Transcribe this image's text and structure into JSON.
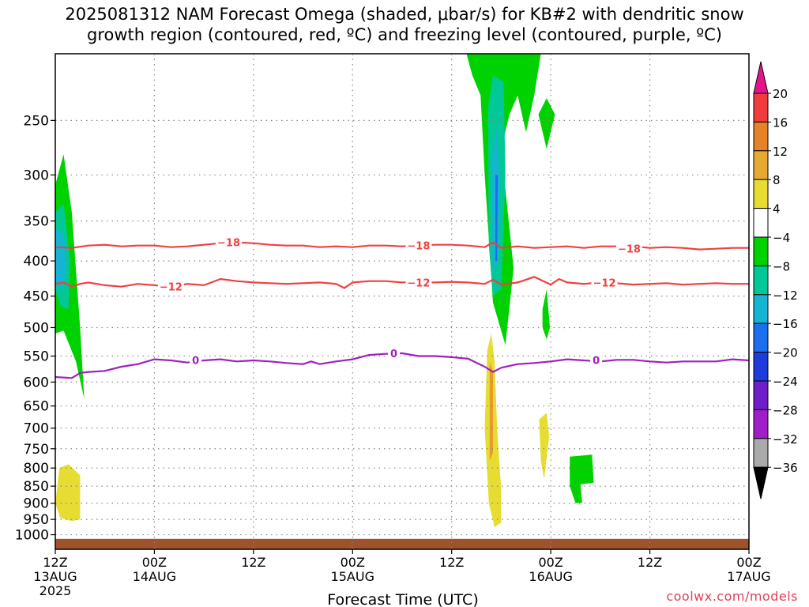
{
  "title_line1": "2025081312 NAM Forecast Omega (shaded, μbar/s) for KB#2 with dendritic snow",
  "title_line2": "growth region (contoured, red, ºC) and freezing level (contoured, purple, ºC)",
  "credit": "coolwx.com/models",
  "colors": {
    "red_contour": "#f04040",
    "purple_contour": "#a020c0",
    "ground": "#a0522d",
    "yellow": "#e6dc32",
    "orange": "#e69b2a",
    "green": "#00d200",
    "teal": "#00c896",
    "cyan": "#14b4d2",
    "blue": "#1e6ef0"
  },
  "chart_data": {
    "type": "heatmap",
    "xlabel": "Forecast Time (UTC)",
    "ylabel": "",
    "x_unit": "hours from 2025-08-13 12Z",
    "xlim": [
      0,
      84
    ],
    "ylim": [
      1050,
      200
    ],
    "y_scale": "log",
    "x_ticks": [
      {
        "value": 0,
        "label": "12Z",
        "sub": "13AUG",
        "sub2": "2025"
      },
      {
        "value": 12,
        "label": "00Z",
        "sub": "14AUG",
        "sub2": ""
      },
      {
        "value": 24,
        "label": "12Z",
        "sub": "",
        "sub2": ""
      },
      {
        "value": 36,
        "label": "00Z",
        "sub": "15AUG",
        "sub2": ""
      },
      {
        "value": 48,
        "label": "12Z",
        "sub": "",
        "sub2": ""
      },
      {
        "value": 60,
        "label": "00Z",
        "sub": "16AUG",
        "sub2": ""
      },
      {
        "value": 72,
        "label": "12Z",
        "sub": "",
        "sub2": ""
      },
      {
        "value": 84,
        "label": "00Z",
        "sub": "17AUG",
        "sub2": ""
      }
    ],
    "y_ticks": [
      250,
      300,
      350,
      400,
      450,
      500,
      550,
      600,
      650,
      700,
      750,
      800,
      850,
      900,
      950,
      1000
    ],
    "colorbar": {
      "levels": [
        "20",
        "16",
        "12",
        "8",
        "4",
        "−4",
        "−8",
        "−12",
        "−16",
        "−20",
        "−24",
        "−28",
        "−32",
        "−36"
      ],
      "colors": [
        "#f03c3c",
        "#e68228",
        "#e6aa32",
        "#e6dc32",
        "#ffffff",
        "#00d200",
        "#00c896",
        "#14b4d2",
        "#1e6ef0",
        "#1e3cdc",
        "#6e1ec8",
        "#a01ec8",
        "#aaaaaa"
      ],
      "top_color": "#e6148c",
      "bottom_color": "#000000"
    },
    "contours": [
      {
        "name": "−18",
        "color": "#f04040",
        "points": [
          [
            0,
            382
          ],
          [
            2,
            383
          ],
          [
            4,
            380
          ],
          [
            6,
            379
          ],
          [
            8,
            381
          ],
          [
            10,
            380
          ],
          [
            12,
            380
          ],
          [
            14,
            382
          ],
          [
            16,
            381
          ],
          [
            18,
            379
          ],
          [
            20,
            377
          ],
          [
            22,
            376
          ],
          [
            24,
            377
          ],
          [
            26,
            379
          ],
          [
            28,
            380
          ],
          [
            30,
            380
          ],
          [
            32,
            382
          ],
          [
            34,
            381
          ],
          [
            36,
            382
          ],
          [
            38,
            380
          ],
          [
            40,
            380
          ],
          [
            42,
            381
          ],
          [
            44,
            380
          ],
          [
            46,
            379
          ],
          [
            48,
            379
          ],
          [
            50,
            380
          ],
          [
            52,
            382
          ],
          [
            53,
            376
          ],
          [
            54,
            383
          ],
          [
            56,
            381
          ],
          [
            58,
            383
          ],
          [
            60,
            382
          ],
          [
            62,
            381
          ],
          [
            64,
            383
          ],
          [
            66,
            381
          ],
          [
            68,
            381
          ],
          [
            70,
            381
          ],
          [
            72,
            383
          ],
          [
            74,
            382
          ],
          [
            76,
            383
          ],
          [
            78,
            385
          ],
          [
            80,
            384
          ],
          [
            82,
            383
          ],
          [
            84,
            383
          ]
        ],
        "labels": [
          {
            "x": 21,
            "p": 376,
            "text": "−18"
          },
          {
            "x": 44,
            "p": 380,
            "text": "−18"
          },
          {
            "x": 69.5,
            "p": 384,
            "text": "−18"
          }
        ]
      },
      {
        "name": "−12",
        "color": "#f04040",
        "points": [
          [
            0,
            432
          ],
          [
            1,
            430
          ],
          [
            2,
            436
          ],
          [
            3,
            432
          ],
          [
            4,
            430
          ],
          [
            6,
            434
          ],
          [
            8,
            436
          ],
          [
            10,
            432
          ],
          [
            12,
            434
          ],
          [
            14,
            436
          ],
          [
            16,
            432
          ],
          [
            18,
            434
          ],
          [
            20,
            425
          ],
          [
            22,
            428
          ],
          [
            24,
            430
          ],
          [
            26,
            431
          ],
          [
            28,
            432
          ],
          [
            30,
            431
          ],
          [
            32,
            430
          ],
          [
            34,
            432
          ],
          [
            35,
            438
          ],
          [
            36,
            430
          ],
          [
            38,
            428
          ],
          [
            40,
            428
          ],
          [
            42,
            430
          ],
          [
            44,
            429
          ],
          [
            46,
            430
          ],
          [
            48,
            429
          ],
          [
            50,
            430
          ],
          [
            52,
            432
          ],
          [
            53,
            426
          ],
          [
            54,
            433
          ],
          [
            56,
            430
          ],
          [
            58,
            422
          ],
          [
            60,
            433
          ],
          [
            61,
            425
          ],
          [
            62,
            430
          ],
          [
            64,
            432
          ],
          [
            66,
            430
          ],
          [
            68,
            431
          ],
          [
            70,
            433
          ],
          [
            72,
            432
          ],
          [
            74,
            431
          ],
          [
            76,
            433
          ],
          [
            78,
            432
          ],
          [
            80,
            431
          ],
          [
            82,
            432
          ],
          [
            84,
            432
          ]
        ],
        "labels": [
          {
            "x": 14,
            "p": 436,
            "text": "−12"
          },
          {
            "x": 44,
            "p": 430,
            "text": "−12"
          },
          {
            "x": 66.5,
            "p": 430,
            "text": "−12"
          }
        ]
      },
      {
        "name": "0",
        "color": "#a020c0",
        "points": [
          [
            0,
            590
          ],
          [
            2,
            592
          ],
          [
            3,
            582
          ],
          [
            4,
            580
          ],
          [
            6,
            578
          ],
          [
            8,
            570
          ],
          [
            10,
            565
          ],
          [
            12,
            556
          ],
          [
            14,
            558
          ],
          [
            16,
            562
          ],
          [
            18,
            558
          ],
          [
            20,
            556
          ],
          [
            22,
            560
          ],
          [
            24,
            558
          ],
          [
            26,
            560
          ],
          [
            28,
            563
          ],
          [
            30,
            565
          ],
          [
            31,
            560
          ],
          [
            32,
            565
          ],
          [
            34,
            560
          ],
          [
            36,
            556
          ],
          [
            38,
            548
          ],
          [
            40,
            546
          ],
          [
            42,
            545
          ],
          [
            44,
            550
          ],
          [
            46,
            550
          ],
          [
            48,
            552
          ],
          [
            50,
            555
          ],
          [
            52,
            570
          ],
          [
            53,
            580
          ],
          [
            54,
            572
          ],
          [
            56,
            565
          ],
          [
            58,
            563
          ],
          [
            60,
            560
          ],
          [
            62,
            556
          ],
          [
            64,
            558
          ],
          [
            66,
            560
          ],
          [
            68,
            557
          ],
          [
            70,
            557
          ],
          [
            72,
            560
          ],
          [
            74,
            562
          ],
          [
            76,
            560
          ],
          [
            78,
            560
          ],
          [
            80,
            560
          ],
          [
            82,
            556
          ],
          [
            84,
            558
          ]
        ],
        "labels": [
          {
            "x": 17,
            "p": 557,
            "text": "0"
          },
          {
            "x": 41,
            "p": 545,
            "text": "0"
          },
          {
            "x": 65.5,
            "p": 557,
            "text": "0"
          }
        ]
      }
    ],
    "shaded_regions": [
      {
        "level": "−4",
        "color": "#00d200",
        "points": [
          [
            0,
            310
          ],
          [
            1,
            280
          ],
          [
            2,
            340
          ],
          [
            3,
            500
          ],
          [
            3.5,
            635
          ],
          [
            2.5,
            560
          ],
          [
            1,
            505
          ],
          [
            0,
            510
          ]
        ]
      },
      {
        "level": "−8",
        "color": "#00c896",
        "points": [
          [
            0,
            340
          ],
          [
            1,
            330
          ],
          [
            1.8,
            400
          ],
          [
            1.6,
            470
          ],
          [
            0.6,
            465
          ],
          [
            0,
            440
          ]
        ]
      },
      {
        "level": "−12",
        "color": "#14b4d2",
        "points": [
          [
            0,
            360
          ],
          [
            1,
            365
          ],
          [
            1.4,
            410
          ],
          [
            0.8,
            440
          ],
          [
            0,
            430
          ]
        ]
      },
      {
        "level": "−4",
        "color": "#00d200",
        "points": [
          [
            49.8,
            200
          ],
          [
            58.8,
            200
          ],
          [
            58,
            230
          ],
          [
            57,
            260
          ],
          [
            56,
            230
          ],
          [
            55,
            245
          ],
          [
            54,
            275
          ],
          [
            55.5,
            410
          ],
          [
            54.5,
            530
          ],
          [
            53,
            460
          ],
          [
            52,
            300
          ],
          [
            51.5,
            230
          ],
          [
            50.5,
            215
          ]
        ]
      },
      {
        "level": "−4",
        "color": "#00d200",
        "points": [
          [
            58.5,
            245
          ],
          [
            59.5,
            275
          ],
          [
            60.5,
            245
          ],
          [
            59.5,
            232
          ]
        ]
      },
      {
        "level": "−8",
        "color": "#00c896",
        "points": [
          [
            52.4,
            240
          ],
          [
            53,
            215
          ],
          [
            54.3,
            220
          ],
          [
            54.5,
            300
          ],
          [
            54,
            440
          ],
          [
            53,
            450
          ],
          [
            52.5,
            380
          ]
        ]
      },
      {
        "level": "−12",
        "color": "#14b4d2",
        "points": [
          [
            52.8,
            290
          ],
          [
            53.4,
            255
          ],
          [
            53.8,
            300
          ],
          [
            53.6,
            400
          ],
          [
            53,
            420
          ]
        ]
      },
      {
        "level": "−16",
        "color": "#1e6ef0",
        "points": [
          [
            53.3,
            300
          ],
          [
            53.6,
            300
          ],
          [
            53.5,
            400
          ],
          [
            53.3,
            400
          ]
        ]
      },
      {
        "level": "−4",
        "color": "#00d200",
        "points": [
          [
            59,
            470
          ],
          [
            59.5,
            440
          ],
          [
            59.9,
            500
          ],
          [
            59.5,
            520
          ],
          [
            59,
            500
          ]
        ]
      },
      {
        "level": "−4",
        "color": "#00d200",
        "points": [
          [
            62.3,
            770
          ],
          [
            65,
            765
          ],
          [
            65.2,
            840
          ],
          [
            63.6,
            845
          ],
          [
            63.8,
            898
          ],
          [
            63,
            900
          ],
          [
            62.3,
            850
          ]
        ]
      },
      {
        "level": "4",
        "color": "#e6dc32",
        "points": [
          [
            0.6,
            945
          ],
          [
            0,
            900
          ],
          [
            0.5,
            800
          ],
          [
            1.6,
            790
          ],
          [
            3,
            820
          ],
          [
            3,
            950
          ],
          [
            2,
            955
          ]
        ]
      },
      {
        "level": "4",
        "color": "#e6dc32",
        "points": [
          [
            52.3,
            540
          ],
          [
            52.8,
            510
          ],
          [
            53.2,
            560
          ],
          [
            53.5,
            700
          ],
          [
            54,
            860
          ],
          [
            54,
            960
          ],
          [
            53.2,
            975
          ],
          [
            52.5,
            900
          ],
          [
            52,
            700
          ]
        ]
      },
      {
        "level": "8",
        "color": "#e69b2a",
        "points": [
          [
            52.6,
            560
          ],
          [
            53,
            580
          ],
          [
            53,
            760
          ],
          [
            52.6,
            780
          ]
        ]
      },
      {
        "level": "4",
        "color": "#e6dc32",
        "points": [
          [
            58.6,
            680
          ],
          [
            59.5,
            665
          ],
          [
            59.8,
            720
          ],
          [
            59.2,
            830
          ],
          [
            58.8,
            780
          ]
        ]
      }
    ],
    "ground": {
      "from_p": 1014,
      "to_p": 1050,
      "color": "#a0522d"
    }
  }
}
